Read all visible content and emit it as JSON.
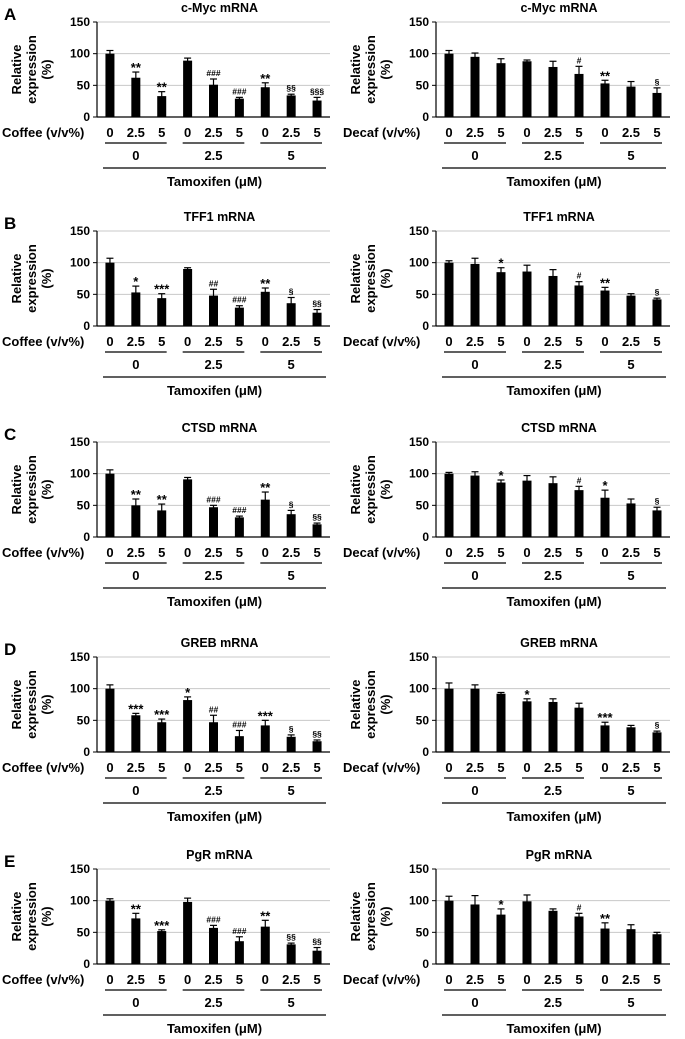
{
  "panel_letters": [
    "A",
    "B",
    "C",
    "D",
    "E"
  ],
  "chart_data": [
    {
      "type": "bar",
      "panel": "A",
      "title": "c-Myc mRNA",
      "ylabel": [
        "Relative",
        "expression",
        "(%)"
      ],
      "ylim": [
        0,
        150
      ],
      "yticks": [
        0,
        50,
        100,
        150
      ],
      "grid": true,
      "row_label": "Coffee (v/v%)",
      "categories": [
        "0",
        "2.5",
        "5",
        "0",
        "2.5",
        "5",
        "0",
        "2.5",
        "5"
      ],
      "group_labels": [
        "0",
        "2.5",
        "5"
      ],
      "xlabel": "Tamoxifen (μM)",
      "values": [
        100,
        62,
        33,
        89,
        51,
        29,
        47,
        34,
        26
      ],
      "errors": [
        5,
        9,
        7,
        4,
        9,
        2,
        7,
        2,
        5
      ],
      "annotations": [
        "",
        "**",
        "**",
        "",
        "###",
        "###",
        "**",
        "§§",
        "§§§"
      ]
    },
    {
      "type": "bar",
      "panel": "A",
      "title": "c-Myc mRNA",
      "ylabel": [
        "Relative",
        "expression",
        "(%)"
      ],
      "ylim": [
        0,
        150
      ],
      "yticks": [
        0,
        50,
        100,
        150
      ],
      "grid": true,
      "row_label": "Decaf (v/v%)",
      "categories": [
        "0",
        "2.5",
        "5",
        "0",
        "2.5",
        "5",
        "0",
        "2.5",
        "5"
      ],
      "group_labels": [
        "0",
        "2.5",
        "5"
      ],
      "xlabel": "Tamoxifen (μM)",
      "values": [
        100,
        95,
        85,
        88,
        79,
        68,
        53,
        48,
        38
      ],
      "errors": [
        5,
        6,
        7,
        2,
        9,
        12,
        5,
        8,
        8
      ],
      "annotations": [
        "",
        "",
        "",
        "",
        "",
        "#",
        "**",
        "",
        "§"
      ]
    },
    {
      "type": "bar",
      "panel": "B",
      "title": "TFF1 mRNA",
      "ylabel": [
        "Relative",
        "expression",
        "(%)"
      ],
      "ylim": [
        0,
        150
      ],
      "yticks": [
        0,
        50,
        100,
        150
      ],
      "grid": true,
      "row_label": "Coffee (v/v%)",
      "categories": [
        "0",
        "2.5",
        "5",
        "0",
        "2.5",
        "5",
        "0",
        "2.5",
        "5"
      ],
      "group_labels": [
        "0",
        "2.5",
        "5"
      ],
      "xlabel": "Tamoxifen (μM)",
      "values": [
        100,
        53,
        44,
        90,
        48,
        29,
        54,
        36,
        21
      ],
      "errors": [
        7,
        10,
        7,
        2,
        10,
        3,
        6,
        9,
        5
      ],
      "annotations": [
        "",
        "*",
        "***",
        "",
        "##",
        "###",
        "**",
        "§",
        "§§"
      ]
    },
    {
      "type": "bar",
      "panel": "B",
      "title": "TFF1 mRNA",
      "ylabel": [
        "Relative",
        "expression",
        "(%)"
      ],
      "ylim": [
        0,
        150
      ],
      "yticks": [
        0,
        50,
        100,
        150
      ],
      "grid": true,
      "row_label": "Decaf (v/v%)",
      "categories": [
        "0",
        "2.5",
        "5",
        "0",
        "2.5",
        "5",
        "0",
        "2.5",
        "5"
      ],
      "group_labels": [
        "0",
        "2.5",
        "5"
      ],
      "xlabel": "Tamoxifen (μM)",
      "values": [
        100,
        98,
        85,
        86,
        79,
        64,
        56,
        48,
        42
      ],
      "errors": [
        3,
        9,
        7,
        10,
        10,
        6,
        5,
        3,
        2
      ],
      "annotations": [
        "",
        "",
        "*",
        "",
        "",
        "#",
        "**",
        "",
        "§"
      ]
    },
    {
      "type": "bar",
      "panel": "C",
      "title": "CTSD mRNA",
      "ylabel": [
        "Relative",
        "expression",
        "(%)"
      ],
      "ylim": [
        0,
        150
      ],
      "yticks": [
        0,
        50,
        100,
        150
      ],
      "grid": true,
      "row_label": "Coffee (v/v%)",
      "categories": [
        "0",
        "2.5",
        "5",
        "0",
        "2.5",
        "5",
        "0",
        "2.5",
        "5"
      ],
      "group_labels": [
        "0",
        "2.5",
        "5"
      ],
      "xlabel": "Tamoxifen (μM)",
      "values": [
        100,
        50,
        42,
        91,
        47,
        31,
        59,
        36,
        20
      ],
      "errors": [
        6,
        10,
        10,
        3,
        3,
        2,
        12,
        6,
        2
      ],
      "annotations": [
        "",
        "**",
        "**",
        "",
        "###",
        "###",
        "**",
        "§",
        "§§"
      ]
    },
    {
      "type": "bar",
      "panel": "C",
      "title": "CTSD mRNA",
      "ylabel": [
        "Relative",
        "expression",
        "(%)"
      ],
      "ylim": [
        0,
        150
      ],
      "yticks": [
        0,
        50,
        100,
        150
      ],
      "grid": true,
      "row_label": "Decaf (v/v%)",
      "categories": [
        "0",
        "2.5",
        "5",
        "0",
        "2.5",
        "5",
        "0",
        "2.5",
        "5"
      ],
      "group_labels": [
        "0",
        "2.5",
        "5"
      ],
      "xlabel": "Tamoxifen (μM)",
      "values": [
        100,
        97,
        86,
        89,
        85,
        74,
        62,
        53,
        42
      ],
      "errors": [
        2,
        6,
        4,
        8,
        10,
        6,
        12,
        7,
        5
      ],
      "annotations": [
        "",
        "",
        "*",
        "",
        "",
        "#",
        "*",
        "",
        "§"
      ]
    },
    {
      "type": "bar",
      "panel": "D",
      "title": "GREB mRNA",
      "ylabel": [
        "Relative",
        "expression",
        "(%)"
      ],
      "ylim": [
        0,
        150
      ],
      "yticks": [
        0,
        50,
        100,
        150
      ],
      "grid": true,
      "row_label": "Coffee (v/v%)",
      "categories": [
        "0",
        "2.5",
        "5",
        "0",
        "2.5",
        "5",
        "0",
        "2.5",
        "5"
      ],
      "group_labels": [
        "0",
        "2.5",
        "5"
      ],
      "xlabel": "Tamoxifen (μM)",
      "values": [
        100,
        58,
        47,
        82,
        47,
        25,
        42,
        24,
        17
      ],
      "errors": [
        6,
        3,
        5,
        5,
        11,
        9,
        8,
        3,
        2
      ],
      "annotations": [
        "",
        "***",
        "***",
        "*",
        "##",
        "###",
        "***",
        "§",
        "§§"
      ]
    },
    {
      "type": "bar",
      "panel": "D",
      "title": "GREB mRNA",
      "ylabel": [
        "Relative",
        "expression",
        "(%)"
      ],
      "ylim": [
        0,
        150
      ],
      "yticks": [
        0,
        50,
        100,
        150
      ],
      "grid": true,
      "row_label": "Decaf (v/v%)",
      "categories": [
        "0",
        "2.5",
        "5",
        "0",
        "2.5",
        "5",
        "0",
        "2.5",
        "5"
      ],
      "group_labels": [
        "0",
        "2.5",
        "5"
      ],
      "xlabel": "Tamoxifen (μM)",
      "values": [
        100,
        100,
        92,
        80,
        79,
        70,
        42,
        39,
        31
      ],
      "errors": [
        9,
        6,
        2,
        4,
        5,
        7,
        5,
        3,
        2
      ],
      "annotations": [
        "",
        "",
        "",
        "*",
        "",
        "",
        "***",
        "",
        "§"
      ]
    },
    {
      "type": "bar",
      "panel": "E",
      "title": "PgR mRNA",
      "ylabel": [
        "Relative",
        "expression",
        "(%)"
      ],
      "ylim": [
        0,
        150
      ],
      "yticks": [
        0,
        50,
        100,
        150
      ],
      "grid": true,
      "row_label": "Coffee (v/v%)",
      "categories": [
        "0",
        "2.5",
        "5",
        "0",
        "2.5",
        "5",
        "0",
        "2.5",
        "5"
      ],
      "group_labels": [
        "0",
        "2.5",
        "5"
      ],
      "xlabel": "Tamoxifen (μM)",
      "values": [
        100,
        72,
        52,
        98,
        57,
        36,
        59,
        31,
        21
      ],
      "errors": [
        3,
        8,
        2,
        6,
        4,
        7,
        10,
        2,
        5
      ],
      "annotations": [
        "",
        "**",
        "***",
        "",
        "###",
        "###",
        "**",
        "§§",
        "§§"
      ]
    },
    {
      "type": "bar",
      "panel": "E",
      "title": "PgR mRNA",
      "ylabel": [
        "Relative",
        "expression",
        "(%)"
      ],
      "ylim": [
        0,
        150
      ],
      "yticks": [
        0,
        50,
        100,
        150
      ],
      "grid": true,
      "row_label": "Decaf (v/v%)",
      "categories": [
        "0",
        "2.5",
        "5",
        "0",
        "2.5",
        "5",
        "0",
        "2.5",
        "5"
      ],
      "group_labels": [
        "0",
        "2.5",
        "5"
      ],
      "xlabel": "Tamoxifen (μM)",
      "values": [
        100,
        94,
        78,
        99,
        84,
        75,
        56,
        55,
        47
      ],
      "errors": [
        7,
        14,
        9,
        10,
        3,
        5,
        9,
        7,
        3
      ],
      "annotations": [
        "",
        "",
        "*",
        "",
        "",
        "#",
        "**",
        "",
        ""
      ]
    }
  ]
}
